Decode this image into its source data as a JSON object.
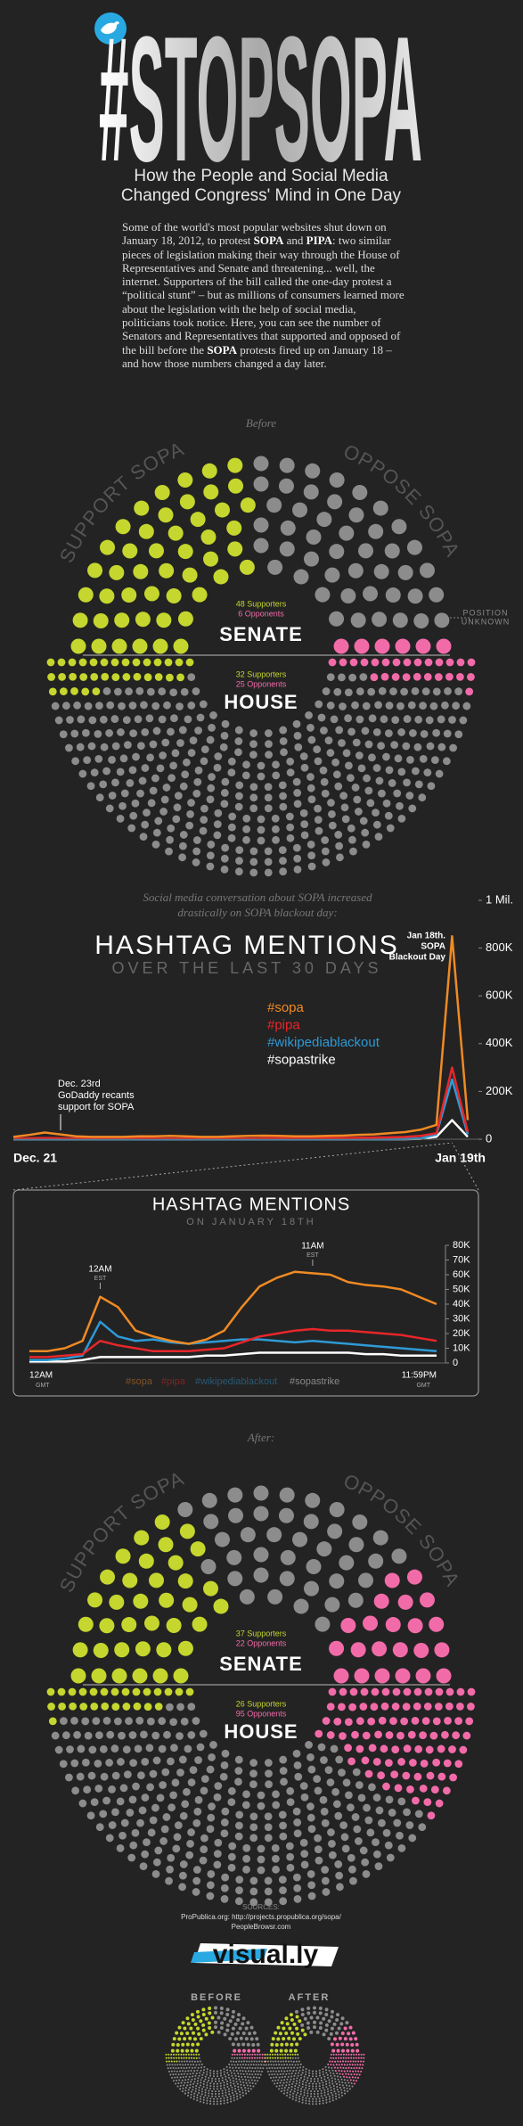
{
  "header": {
    "title": "#STOPSOPA",
    "subtitle": [
      "How the People and Social Media",
      "Changed Congress' Mind in One Day"
    ]
  },
  "intro": [
    "Some of the world's most popular websites shut down on January 18, 2012, to protest ",
    "SOPA",
    " and ",
    "PIPA",
    ": two similar pieces of legislation making their way through the House of Representatives and Senate and threatening... well, the internet. Supporters of the bill called the one-day protest a “political stunt” – but as millions of consumers learned more about the legislation with the help of social media, politicians took notice. Here, you can see the number of Senators and Representatives that supported and opposed of the bill before the ",
    "SOPA",
    " protests fired up on January 18 – and how those numbers changed a day later."
  ],
  "seat_colors": {
    "supporters": "#c5d62e",
    "opponents": "#f26ba9",
    "unknown": "#8c8c8c"
  },
  "before": {
    "label": "Before",
    "support_label": "SUPPORT SOPA",
    "oppose_label": "OPPOSE SOPA",
    "unknown_label": [
      "POSITION",
      "UNKNOWN"
    ],
    "senate": {
      "name": "SENATE",
      "supporters": 48,
      "opponents": 6,
      "supporters_label": "48 Supporters",
      "opponents_label": "6 Opponents"
    },
    "house": {
      "name": "HOUSE",
      "supporters": 32,
      "opponents": 25,
      "supporters_label": "32 Supporters",
      "opponents_label": "25 Opponents"
    }
  },
  "chart_data": [
    {
      "type": "line",
      "intro": [
        "Social media conversation about SOPA increased",
        "drastically on SOPA blackout day:"
      ],
      "title": "HASHTAG MENTIONS",
      "subtitle": "OVER THE LAST 30 DAYS",
      "categories": [
        "Dec. 21",
        null,
        null,
        null,
        null,
        null,
        null,
        null,
        null,
        null,
        null,
        null,
        null,
        null,
        null,
        null,
        null,
        null,
        null,
        null,
        null,
        null,
        null,
        null,
        null,
        null,
        null,
        null,
        null,
        "Jan 19th"
      ],
      "series": [
        {
          "name": "#sopa",
          "color": "#f08a24",
          "values": [
            10000,
            18000,
            28000,
            20000,
            12000,
            10000,
            10000,
            10000,
            12000,
            12000,
            14000,
            12000,
            10000,
            10000,
            12000,
            14000,
            15000,
            14000,
            12000,
            12000,
            14000,
            15000,
            18000,
            20000,
            25000,
            30000,
            40000,
            60000,
            850000,
            80000
          ]
        },
        {
          "name": "#pipa",
          "color": "#e8262a",
          "values": [
            3000,
            4000,
            5000,
            4000,
            3000,
            3000,
            3000,
            3000,
            3000,
            3000,
            3000,
            3000,
            3000,
            3000,
            3000,
            3000,
            4000,
            4000,
            4000,
            4000,
            5000,
            5000,
            6000,
            7000,
            8000,
            10000,
            14000,
            25000,
            300000,
            30000
          ]
        },
        {
          "name": "#wikipediablackout",
          "color": "#2e9ad6",
          "values": [
            0,
            0,
            0,
            0,
            0,
            0,
            0,
            0,
            0,
            0,
            0,
            0,
            0,
            0,
            0,
            0,
            0,
            0,
            0,
            0,
            0,
            0,
            0,
            0,
            0,
            1000,
            3000,
            20000,
            250000,
            20000
          ]
        },
        {
          "name": "#sopastrike",
          "color": "#ffffff",
          "values": [
            0,
            0,
            0,
            0,
            0,
            0,
            0,
            0,
            0,
            0,
            0,
            0,
            0,
            0,
            0,
            0,
            0,
            0,
            0,
            0,
            0,
            0,
            0,
            0,
            0,
            0,
            2000,
            10000,
            80000,
            10000
          ]
        }
      ],
      "ylim": [
        0,
        1000000
      ],
      "yticks": [
        0,
        {
          "value": 200000,
          "label": "200K"
        },
        {
          "value": 400000,
          "label": "400K"
        },
        {
          "value": 600000,
          "label": "600K"
        },
        {
          "value": 800000,
          "label": "800K"
        },
        {
          "value": 1000000,
          "label": "1 Mil."
        }
      ],
      "annotations": [
        [
          "Dec. 23rd",
          "GoDaddy recants",
          "support for SOPA"
        ],
        [
          "Jan 18th.",
          "SOPA",
          "Blackout Day"
        ]
      ]
    },
    {
      "type": "line",
      "title": "HASHTAG MENTIONS",
      "subtitle": "ON JANUARY 18TH",
      "x_unit": "GMT",
      "categories": [
        "12AM",
        null,
        null,
        null,
        null,
        null,
        null,
        null,
        null,
        null,
        null,
        null,
        null,
        null,
        null,
        null,
        null,
        null,
        null,
        null,
        null,
        null,
        null,
        "11:59PM"
      ],
      "series": [
        {
          "name": "#sopa",
          "color": "#f08a24",
          "values": [
            8000,
            8000,
            10000,
            15000,
            45000,
            38000,
            22000,
            18000,
            15000,
            13000,
            16000,
            22000,
            38000,
            52000,
            58000,
            62000,
            61000,
            60000,
            55000,
            53000,
            52000,
            50000,
            45000,
            40000
          ]
        },
        {
          "name": "#pipa",
          "color": "#e8262a",
          "values": [
            4000,
            4000,
            5000,
            6000,
            15000,
            12000,
            10000,
            8000,
            8000,
            8000,
            9000,
            10000,
            14000,
            18000,
            20000,
            22000,
            23000,
            22000,
            22000,
            21000,
            20000,
            19000,
            17000,
            15000
          ]
        },
        {
          "name": "#wikipediablackout",
          "color": "#2e9ad6",
          "values": [
            2000,
            2000,
            3000,
            5000,
            28000,
            18000,
            15000,
            16000,
            14000,
            13000,
            14000,
            15000,
            16000,
            16000,
            15000,
            14000,
            15000,
            14000,
            13000,
            12000,
            11000,
            10000,
            9000,
            8000
          ]
        },
        {
          "name": "#sopastrike",
          "color": "#ffffff",
          "values": [
            1000,
            1000,
            1000,
            2000,
            4000,
            4000,
            4000,
            4000,
            4000,
            4000,
            5000,
            5000,
            6000,
            7000,
            7000,
            7000,
            7000,
            7000,
            7000,
            6000,
            6000,
            5000,
            5000,
            5000
          ]
        }
      ],
      "ylim": [
        0,
        80000
      ],
      "yticks": [
        0,
        {
          "value": 10000,
          "label": "10K"
        },
        {
          "value": 20000,
          "label": "20K"
        },
        {
          "value": 30000,
          "label": "30K"
        },
        {
          "value": 40000,
          "label": "40K"
        },
        {
          "value": 50000,
          "label": "50K"
        },
        {
          "value": 60000,
          "label": "60K"
        },
        {
          "value": 70000,
          "label": "70K"
        },
        {
          "value": 80000,
          "label": "80K"
        }
      ],
      "annotations": [
        [
          "12AM",
          "EST"
        ],
        [
          "11AM",
          "EST"
        ]
      ]
    }
  ],
  "after": {
    "label": "After:",
    "support_label": "SUPPORT SOPA",
    "oppose_label": "OPPOSE SOPA",
    "senate": {
      "name": "SENATE",
      "supporters": 37,
      "opponents": 22,
      "supporters_label": "37 Supporters",
      "opponents_label": "22 Opponents"
    },
    "house": {
      "name": "HOUSE",
      "supporters": 26,
      "opponents": 95,
      "supporters_label": "26 Supporters",
      "opponents_label": "95 Opponents"
    }
  },
  "sources": [
    "SOURCES:",
    "ProPublica.org: http://projects.propublica.org/sopa/",
    "PeopleBrowsr.com"
  ],
  "footer": {
    "logo": "visual.ly",
    "before": "BEFORE",
    "after": "AFTER"
  }
}
